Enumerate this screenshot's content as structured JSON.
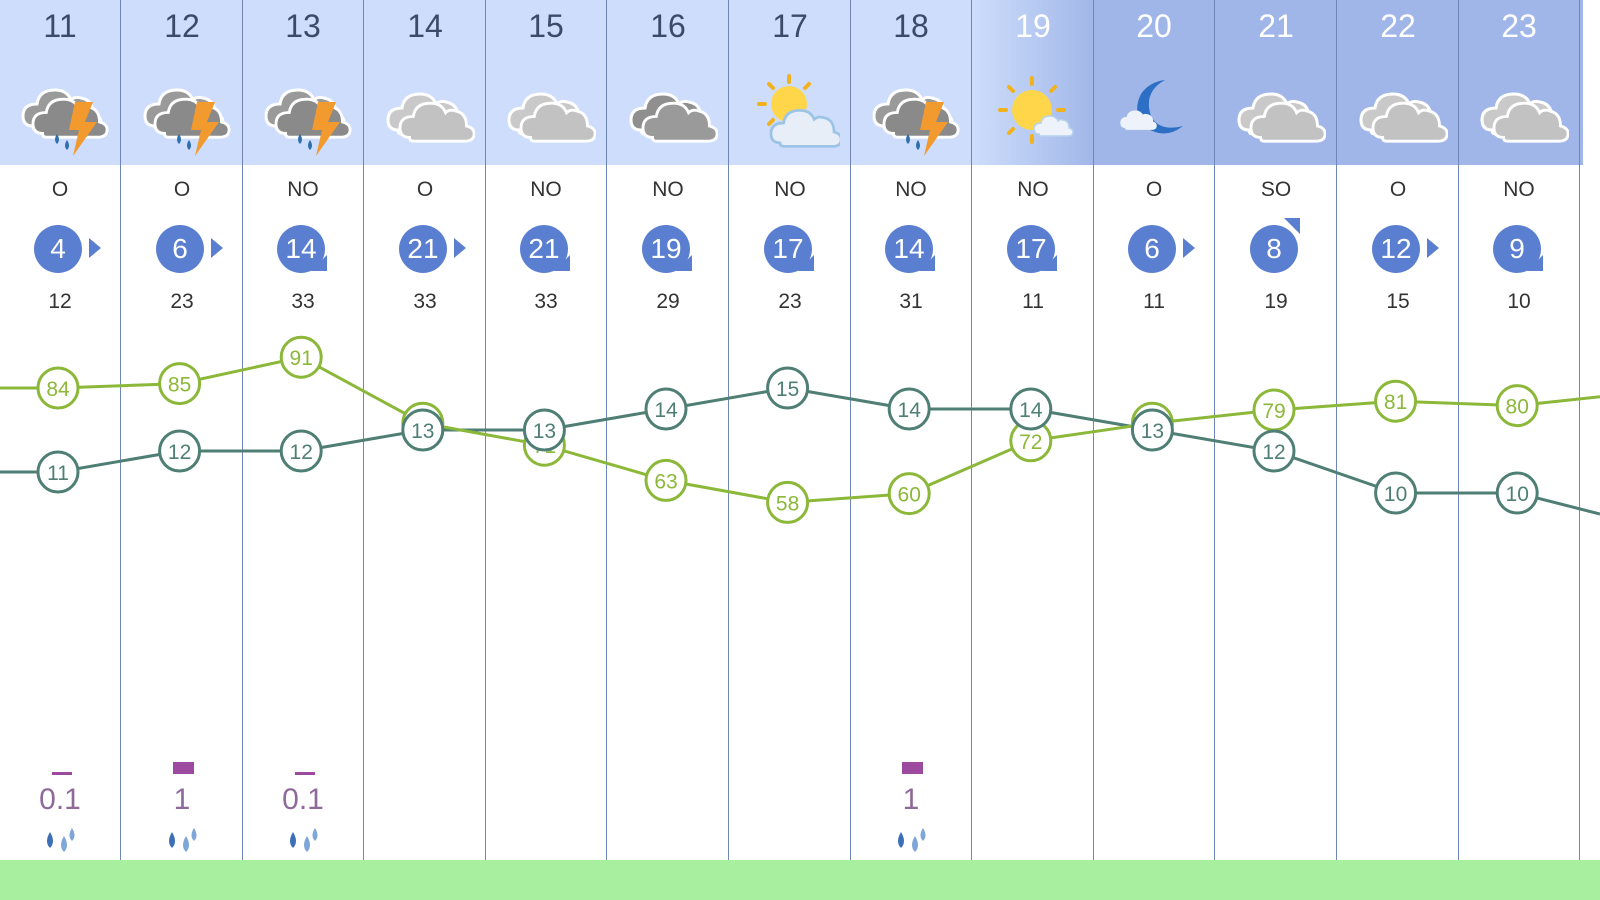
{
  "hours": [
    {
      "hour": "11",
      "icon": "thunderstorm-rain-icon",
      "wind_dir": "O",
      "wind_speed": "4",
      "wind_arrow": "east",
      "gust": "12",
      "precip": "0.1",
      "precip_bar": "small"
    },
    {
      "hour": "12",
      "icon": "thunderstorm-rain-icon",
      "wind_dir": "O",
      "wind_speed": "6",
      "wind_arrow": "east",
      "gust": "23",
      "precip": "1",
      "precip_bar": "big"
    },
    {
      "hour": "13",
      "icon": "thunderstorm-rain-icon",
      "wind_dir": "NO",
      "wind_speed": "14",
      "wind_arrow": "se",
      "gust": "33",
      "precip": "0.1",
      "precip_bar": "small"
    },
    {
      "hour": "14",
      "icon": "cloudy-icon",
      "wind_dir": "O",
      "wind_speed": "21",
      "wind_arrow": "east",
      "gust": "33",
      "precip": "",
      "precip_bar": ""
    },
    {
      "hour": "15",
      "icon": "cloudy-icon",
      "wind_dir": "NO",
      "wind_speed": "21",
      "wind_arrow": "se",
      "gust": "33",
      "precip": "",
      "precip_bar": ""
    },
    {
      "hour": "16",
      "icon": "overcast-icon",
      "wind_dir": "NO",
      "wind_speed": "19",
      "wind_arrow": "se",
      "gust": "29",
      "precip": "",
      "precip_bar": ""
    },
    {
      "hour": "17",
      "icon": "partly-sunny-icon",
      "wind_dir": "NO",
      "wind_speed": "17",
      "wind_arrow": "se",
      "gust": "23",
      "precip": "",
      "precip_bar": ""
    },
    {
      "hour": "18",
      "icon": "thunderstorm-rain-icon",
      "wind_dir": "NO",
      "wind_speed": "14",
      "wind_arrow": "se",
      "gust": "31",
      "precip": "1",
      "precip_bar": "big"
    },
    {
      "hour": "19",
      "icon": "sun-cloud-icon",
      "wind_dir": "NO",
      "wind_speed": "17",
      "wind_arrow": "se",
      "gust": "11",
      "precip": "",
      "precip_bar": ""
    },
    {
      "hour": "20",
      "icon": "moon-cloud-icon",
      "wind_dir": "O",
      "wind_speed": "6",
      "wind_arrow": "east",
      "gust": "11",
      "precip": "",
      "precip_bar": ""
    },
    {
      "hour": "21",
      "icon": "cloudy-icon",
      "wind_dir": "SO",
      "wind_speed": "8",
      "wind_arrow": "ne",
      "gust": "19",
      "precip": "",
      "precip_bar": ""
    },
    {
      "hour": "22",
      "icon": "cloudy-icon",
      "wind_dir": "O",
      "wind_speed": "12",
      "wind_arrow": "east",
      "gust": "15",
      "precip": "",
      "precip_bar": ""
    },
    {
      "hour": "23",
      "icon": "cloudy-icon",
      "wind_dir": "NO",
      "wind_speed": "9",
      "wind_arrow": "se",
      "gust": "10",
      "precip": "",
      "precip_bar": ""
    }
  ],
  "colors": {
    "day_header": "#cdddfb",
    "dusk_header": "#aec3f0",
    "night_header": "#a0b6e8",
    "wind_badge": "#5b7fd0",
    "humidity_line": "#8cb83a",
    "temperature_line": "#4f7f74",
    "precip_bar": "#9b4aa0",
    "precip_text": "#8e6a9a",
    "bottom_strip": "#a8f0a0"
  },
  "header_phase": [
    "day",
    "day",
    "day",
    "day",
    "day",
    "day",
    "day",
    "day",
    "dusk",
    "night",
    "night",
    "night",
    "night"
  ],
  "chart_data": {
    "type": "line",
    "categories": [
      "11",
      "12",
      "13",
      "14",
      "15",
      "16",
      "17",
      "18",
      "19",
      "20",
      "21",
      "22",
      "23"
    ],
    "series": [
      {
        "values": [
          84,
          85,
          91,
          76,
          71,
          63,
          58,
          60,
          72,
          76,
          79,
          81,
          80
        ]
      },
      {
        "values": [
          11,
          12,
          12,
          13,
          13,
          14,
          15,
          14,
          14,
          13,
          12,
          10,
          10
        ]
      }
    ],
    "edge_values": {
      "humidity_left": 84,
      "humidity_right": 82,
      "temperature_left": 11,
      "temperature_right": 9
    }
  }
}
